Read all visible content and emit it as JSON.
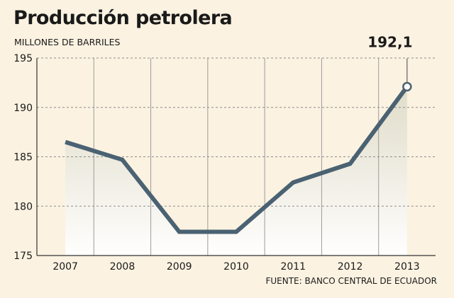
{
  "chart_data": {
    "type": "area",
    "title": "Producción petrolera",
    "ylabel": "MILLONES DE BARRILES",
    "xlabel": "",
    "categories": [
      "2007",
      "2008",
      "2009",
      "2010",
      "2011",
      "2012",
      "2013"
    ],
    "series": [
      {
        "values": [
          186.5,
          184.7,
          177.4,
          177.4,
          182.4,
          184.3,
          192.1
        ]
      }
    ],
    "ylim": [
      175,
      195
    ],
    "yticks": [
      175,
      180,
      185,
      190,
      195
    ],
    "grid": true,
    "annotation": {
      "category": "2013",
      "text": "192,1"
    },
    "source": "FUENTE: BANCO CENTRAL DE ECUADOR",
    "colors": {
      "line": "#4a6272",
      "background": "#fbf2e1",
      "marker_fill": "#ffffff"
    }
  }
}
